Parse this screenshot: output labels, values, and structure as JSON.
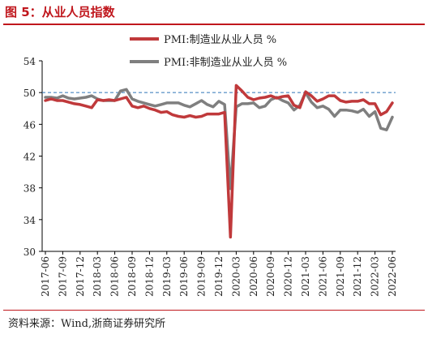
{
  "figure": {
    "title": "图 5：从业人员指数",
    "source": "资料来源：Wind,浙商证券研究所"
  },
  "chart_data": {
    "type": "line",
    "title": "",
    "xlabel": "",
    "ylabel": "",
    "ylim": [
      30,
      54
    ],
    "yticks": [
      30,
      34,
      38,
      42,
      46,
      50,
      54
    ],
    "xtick_labels": [
      "2017-06",
      "2017-09",
      "2017-12",
      "2018-03",
      "2018-06",
      "2018-09",
      "2018-12",
      "2019-03",
      "2019-06",
      "2019-09",
      "2019-12",
      "2020-03",
      "2020-06",
      "2020-09",
      "2020-12",
      "2021-03",
      "2021-06",
      "2021-09",
      "2021-12",
      "2022-03",
      "2022-06"
    ],
    "reference_line": 50,
    "legend_position": "top",
    "colors": {
      "manufacturing": "#c0393b",
      "non_manufacturing": "#7f7f7f",
      "reference": "#2e75b6"
    },
    "x": [
      "2017-06",
      "2017-07",
      "2017-08",
      "2017-09",
      "2017-10",
      "2017-11",
      "2017-12",
      "2018-01",
      "2018-02",
      "2018-03",
      "2018-04",
      "2018-05",
      "2018-06",
      "2018-07",
      "2018-08",
      "2018-09",
      "2018-10",
      "2018-11",
      "2018-12",
      "2019-01",
      "2019-02",
      "2019-03",
      "2019-04",
      "2019-05",
      "2019-06",
      "2019-07",
      "2019-08",
      "2019-09",
      "2019-10",
      "2019-11",
      "2019-12",
      "2020-01",
      "2020-02",
      "2020-03",
      "2020-04",
      "2020-05",
      "2020-06",
      "2020-07",
      "2020-08",
      "2020-09",
      "2020-10",
      "2020-11",
      "2020-12",
      "2021-01",
      "2021-02",
      "2021-03",
      "2021-04",
      "2021-05",
      "2021-06",
      "2021-07",
      "2021-08",
      "2021-09",
      "2021-10",
      "2021-11",
      "2021-12",
      "2022-01",
      "2022-02",
      "2022-03",
      "2022-04",
      "2022-05",
      "2022-06"
    ],
    "series": [
      {
        "name": "PMI:制造业从业人员 %",
        "key": "manufacturing",
        "values": [
          49.0,
          49.2,
          49.0,
          49.0,
          48.8,
          48.6,
          48.5,
          48.3,
          48.1,
          49.1,
          49.0,
          49.1,
          49.0,
          49.2,
          49.4,
          48.3,
          48.1,
          48.3,
          48.0,
          47.8,
          47.5,
          47.6,
          47.2,
          47.0,
          46.9,
          47.1,
          46.9,
          47.0,
          47.3,
          47.3,
          47.3,
          47.5,
          31.8,
          50.9,
          50.2,
          49.4,
          49.1,
          49.3,
          49.4,
          49.6,
          49.3,
          49.5,
          49.6,
          48.4,
          48.1,
          50.1,
          49.6,
          48.9,
          49.2,
          49.6,
          49.6,
          49.0,
          48.8,
          48.9,
          48.9,
          49.1,
          48.6,
          48.6,
          47.2,
          47.6,
          48.7
        ]
      },
      {
        "name": "PMI:非制造业从业人员 %",
        "key": "non_manufacturing",
        "values": [
          49.4,
          49.4,
          49.3,
          49.6,
          49.3,
          49.2,
          49.3,
          49.4,
          49.6,
          49.2,
          49.0,
          49.0,
          49.0,
          50.2,
          50.4,
          49.2,
          48.9,
          48.7,
          48.5,
          48.3,
          48.5,
          48.7,
          48.7,
          48.7,
          48.4,
          48.2,
          48.6,
          49.0,
          48.5,
          48.2,
          48.9,
          48.5,
          37.9,
          48.2,
          48.6,
          48.6,
          48.7,
          48.1,
          48.3,
          49.1,
          49.4,
          49.0,
          48.7,
          47.8,
          48.4,
          50.0,
          48.8,
          48.1,
          48.3,
          47.9,
          47.0,
          47.8,
          47.8,
          47.7,
          47.5,
          47.9,
          47.0,
          47.6,
          45.5,
          45.3,
          46.9
        ]
      }
    ]
  }
}
